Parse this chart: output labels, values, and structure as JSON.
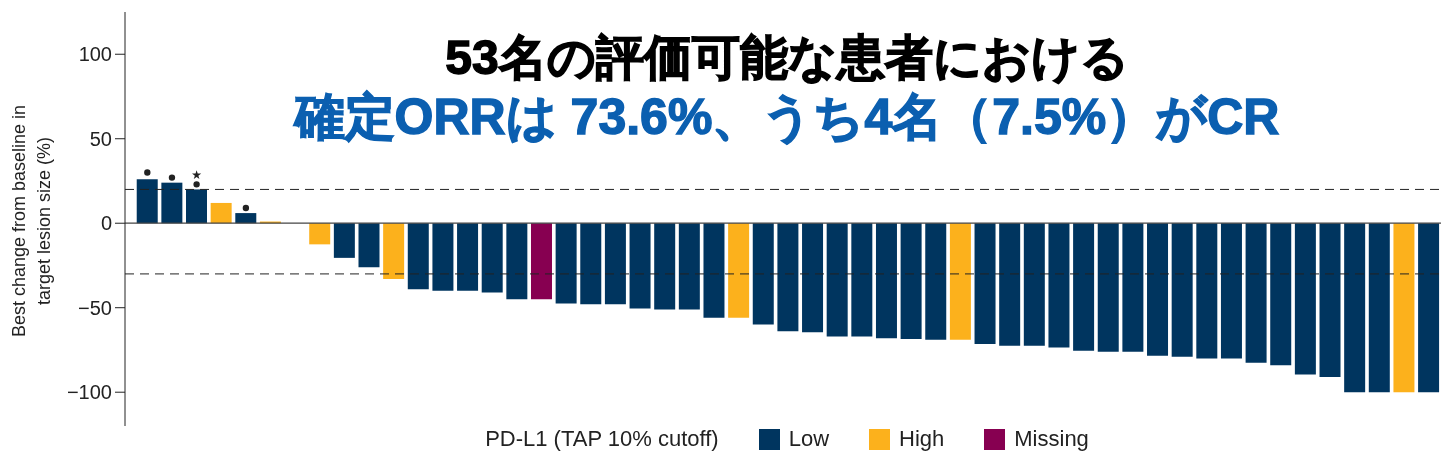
{
  "chart_data": {
    "type": "bar",
    "title": "53名の評価可能な患者における",
    "subtitle": "確定ORRは 73.6%、うち4名（7.5%）がCR",
    "ylabel": "Best change from baseline in\ntarget lesion size (%)",
    "legend_title": "PD-L1 (TAP 10% cutoff)",
    "categories": [
      null,
      null,
      null,
      null,
      null,
      null,
      null,
      null,
      null,
      null,
      null,
      null,
      null,
      null,
      null,
      null,
      null,
      null,
      null,
      null,
      null,
      null,
      null,
      null,
      null,
      null,
      null,
      null,
      null,
      null,
      null,
      null,
      null,
      null,
      null,
      null,
      null,
      null,
      null,
      null,
      null,
      null,
      null,
      null,
      null,
      null,
      null,
      null,
      null,
      null,
      null,
      null,
      null
    ],
    "stacked": true,
    "series": [
      {
        "name": "Low",
        "color": "#00355f",
        "values": [
          26,
          24,
          20,
          null,
          6,
          null,
          null,
          null,
          -20.5,
          -26,
          null,
          -39,
          -40,
          -40,
          -41,
          -45,
          null,
          -47.5,
          -48,
          -48,
          -50.5,
          -51,
          -51,
          -56,
          null,
          -60,
          -64,
          -64.5,
          -67,
          -67,
          -68,
          -68.5,
          -69,
          null,
          -71.5,
          -72.5,
          -72.5,
          -73.5,
          -75.5,
          -76,
          -76,
          -78.5,
          -79,
          -80,
          -80,
          -82.5,
          -84,
          -89.5,
          -91,
          -100,
          -100,
          null,
          -100
        ]
      },
      {
        "name": "High",
        "color": "#fcb11c",
        "values": [
          null,
          null,
          null,
          12,
          null,
          1,
          null,
          -12.5,
          null,
          null,
          -33,
          null,
          null,
          null,
          null,
          null,
          null,
          null,
          null,
          null,
          null,
          null,
          null,
          null,
          -56,
          null,
          null,
          null,
          null,
          null,
          null,
          null,
          null,
          -69,
          null,
          null,
          null,
          null,
          null,
          null,
          null,
          null,
          null,
          null,
          null,
          null,
          null,
          null,
          null,
          null,
          null,
          -100,
          null
        ]
      },
      {
        "name": "Missing",
        "color": "#870051",
        "values": [
          null,
          null,
          null,
          null,
          null,
          null,
          null,
          null,
          null,
          null,
          null,
          null,
          null,
          null,
          null,
          null,
          -45,
          null,
          null,
          null,
          null,
          null,
          null,
          null,
          null,
          null,
          null,
          null,
          null,
          null,
          null,
          null,
          null,
          null,
          null,
          null,
          null,
          null,
          null,
          null,
          null,
          null,
          null,
          null,
          null,
          null,
          null,
          null,
          null,
          null,
          null,
          null,
          null
        ]
      },
      {
        "type": "scatter",
        "color": "#222222",
        "marker": "circle",
        "values": [
          30,
          27,
          23,
          null,
          9,
          null,
          null,
          null,
          null,
          null,
          null,
          null,
          null,
          null,
          null,
          null,
          null,
          null,
          null,
          null,
          null,
          null,
          null,
          null,
          null,
          null,
          null,
          null,
          null,
          null,
          null,
          null,
          null,
          null,
          null,
          null,
          null,
          null,
          null,
          null,
          null,
          null,
          null,
          null,
          null,
          null,
          null,
          null,
          null,
          null,
          null,
          null,
          null
        ]
      },
      {
        "type": "scatter",
        "color": "#222222",
        "marker": "star",
        "values": [
          null,
          null,
          28.5,
          null,
          null,
          null,
          null,
          null,
          null,
          null,
          null,
          null,
          null,
          null,
          null,
          null,
          null,
          null,
          null,
          null,
          null,
          null,
          null,
          null,
          null,
          null,
          null,
          null,
          null,
          null,
          null,
          null,
          null,
          null,
          null,
          null,
          null,
          null,
          null,
          null,
          null,
          null,
          null,
          null,
          null,
          null,
          null,
          null,
          null,
          null,
          null,
          null,
          null
        ]
      }
    ],
    "ylim": [
      -120,
      125
    ],
    "yticks": [
      100,
      50,
      0,
      {
        "value": -50,
        "label": "−50"
      },
      {
        "value": -100,
        "label": "−100"
      }
    ],
    "ref_lines": [
      {
        "axis": "y",
        "value": 20,
        "line_style": "dashed"
      },
      {
        "axis": "y",
        "value": -30,
        "line_style": "dashed"
      }
    ],
    "legend": "bottom",
    "tick_labels": "y"
  }
}
